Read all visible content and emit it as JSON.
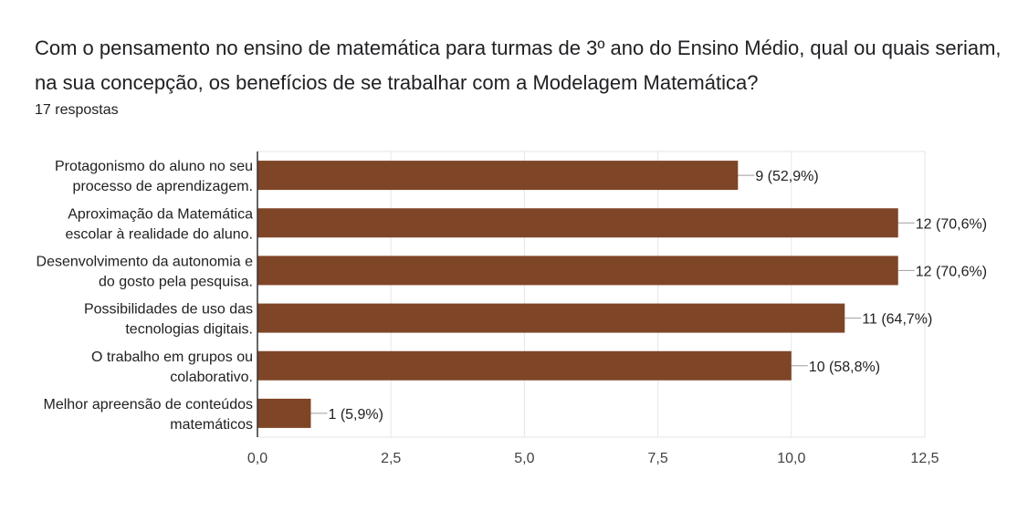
{
  "header": {
    "title": "Com o pensamento no ensino de matemática para turmas de 3º ano do Ensino Médio,  qual ou quais seriam, na sua concepção, os benefícios de se trabalhar com a Modelagem Matemática?",
    "responses": "17 respostas"
  },
  "chart_data": {
    "type": "bar",
    "orientation": "horizontal",
    "categories": [
      [
        "Protagonismo do aluno no seu",
        "processo de aprendizagem."
      ],
      [
        "Aproximação da Matemática",
        "escolar à realidade do aluno."
      ],
      [
        "Desenvolvimento da autonomia e",
        "do gosto pela pesquisa."
      ],
      [
        "Possibilidades de uso das",
        "tecnologias digitais."
      ],
      [
        "O trabalho em grupos ou",
        "colaborativo."
      ],
      [
        "Melhor apreensão de conteúdos",
        "matemáticos"
      ]
    ],
    "values": [
      9,
      12,
      12,
      11,
      10,
      1
    ],
    "data_labels": [
      "9 (52,9%)",
      "12 (70,6%)",
      "12 (70,6%)",
      "11 (64,7%)",
      "10 (58,8%)",
      "1 (5,9%)"
    ],
    "xlim": [
      0,
      12.5
    ],
    "xticks": [
      0,
      2.5,
      5,
      7.5,
      10,
      12.5
    ],
    "xtick_labels": [
      "0,0",
      "2,5",
      "5,0",
      "7,5",
      "10,0",
      "12,5"
    ],
    "bar_color": "#7f4527",
    "grid": true
  }
}
